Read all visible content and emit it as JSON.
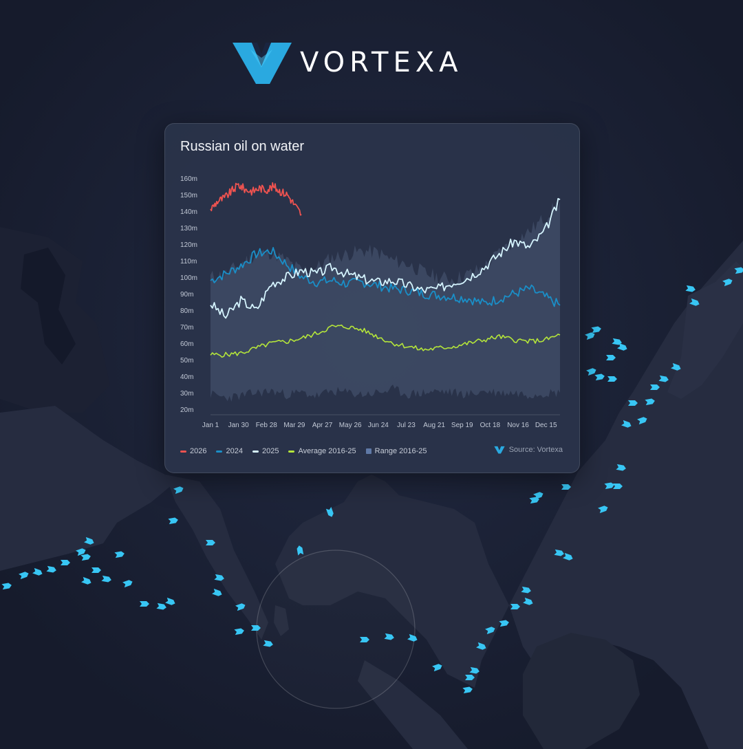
{
  "brand": {
    "name": "VORTEXA"
  },
  "source": {
    "label": "Source: Vortexa"
  },
  "colors": {
    "background": "#1a1f33",
    "land": "#262c40",
    "vessel": "#38c6f4",
    "card": "#2a344a",
    "accent": "#38c6f4"
  },
  "chart_data": {
    "type": "line",
    "title": "Russian oil on water",
    "xlabel": "",
    "ylabel": "",
    "ylim": [
      20,
      160
    ],
    "yticks": [
      "20m",
      "30m",
      "40m",
      "50m",
      "60m",
      "70m",
      "80m",
      "90m",
      "100m",
      "110m",
      "120m",
      "130m",
      "140m",
      "150m",
      "160m"
    ],
    "xticks": [
      "Jan 1",
      "Jan 30",
      "Feb 28",
      "Mar 29",
      "Apr 27",
      "May 26",
      "Jun 24",
      "Jul 23",
      "Aug 21",
      "Sep 19",
      "Oct 18",
      "Nov 16",
      "Dec 15"
    ],
    "x_week_index": [
      0,
      4,
      8,
      12,
      16,
      20,
      24,
      28,
      32,
      36,
      40,
      44,
      48,
      50
    ],
    "grid": false,
    "legend_position": "bottom-left",
    "series": [
      {
        "name": "2026",
        "color": "#ef5350",
        "x_week_index": [
          0,
          1,
          2,
          3,
          4,
          5,
          6,
          7,
          8,
          9,
          10,
          11,
          12,
          13
        ],
        "values": [
          141,
          146,
          148,
          152,
          156,
          153,
          152,
          154,
          153,
          155,
          152,
          150,
          144,
          138
        ]
      },
      {
        "name": "2024",
        "color": "#1a8fc8",
        "values": [
          98,
          102,
          107,
          114,
          116,
          108,
          100,
          97,
          98,
          96,
          97,
          95,
          93,
          92,
          90,
          89,
          88,
          87,
          84,
          87,
          90,
          93,
          88,
          83
        ]
      },
      {
        "name": "2025",
        "color": "#d6f5ff",
        "values": [
          84,
          76,
          86,
          80,
          96,
          100,
          104,
          102,
          106,
          102,
          99,
          97,
          98,
          95,
          92,
          93,
          97,
          100,
          106,
          114,
          122,
          118,
          128,
          147
        ]
      },
      {
        "name": "Average 2016-25",
        "color": "#b5e63a",
        "values": [
          53,
          53,
          54,
          57,
          60,
          61,
          63,
          66,
          70,
          70,
          68,
          64,
          60,
          58,
          56,
          57,
          58,
          60,
          62,
          64,
          62,
          61,
          62,
          65
        ]
      },
      {
        "name": "Range 2016-25",
        "color": "#4b5a74",
        "upper": [
          100,
          102,
          108,
          114,
          115,
          110,
          104,
          106,
          112,
          114,
          116,
          115,
          110,
          108,
          103,
          100,
          99,
          102,
          106,
          115,
          122,
          128,
          136,
          146
        ],
        "lower": [
          29,
          27,
          28,
          30,
          31,
          29,
          30,
          28,
          31,
          30,
          29,
          30,
          32,
          29,
          30,
          31,
          30,
          29,
          31,
          30,
          30,
          29,
          30,
          30
        ]
      }
    ]
  },
  "map": {
    "vessels": [
      [
        260,
        712,
        0
      ],
      [
        252,
        757,
        0
      ],
      [
        306,
        789,
        0
      ],
      [
        319,
        840,
        0
      ],
      [
        316,
        862,
        0
      ],
      [
        350,
        882,
        0
      ],
      [
        348,
        918,
        0
      ],
      [
        372,
        913,
        0
      ],
      [
        390,
        936,
        0
      ],
      [
        130,
        787,
        0
      ],
      [
        118,
        802,
        0
      ],
      [
        125,
        810,
        0
      ],
      [
        95,
        818,
        0
      ],
      [
        75,
        828,
        0
      ],
      [
        55,
        832,
        0
      ],
      [
        35,
        836,
        0
      ],
      [
        10,
        852,
        0
      ],
      [
        140,
        829,
        0
      ],
      [
        155,
        842,
        0
      ],
      [
        126,
        845,
        0
      ],
      [
        186,
        848,
        0
      ],
      [
        174,
        806,
        0
      ],
      [
        210,
        878,
        0
      ],
      [
        235,
        882,
        0
      ],
      [
        248,
        875,
        0
      ],
      [
        480,
        745,
        90
      ],
      [
        436,
        800,
        -90
      ],
      [
        530,
        930,
        0
      ],
      [
        566,
        926,
        0
      ],
      [
        600,
        928,
        0
      ],
      [
        636,
        970,
        0
      ],
      [
        680,
        1003,
        0
      ],
      [
        683,
        985,
        0
      ],
      [
        690,
        975,
        0
      ],
      [
        700,
        940,
        0
      ],
      [
        713,
        916,
        0
      ],
      [
        733,
        906,
        0
      ],
      [
        749,
        882,
        0
      ],
      [
        765,
        858,
        0
      ],
      [
        768,
        875,
        0
      ],
      [
        783,
        720,
        0
      ],
      [
        777,
        727,
        0
      ],
      [
        823,
        708,
        0
      ],
      [
        813,
        804,
        0
      ],
      [
        826,
        810,
        0
      ],
      [
        877,
        740,
        0
      ],
      [
        886,
        706,
        0
      ],
      [
        898,
        707,
        0
      ],
      [
        903,
        680,
        0
      ],
      [
        911,
        617,
        0
      ],
      [
        934,
        611,
        0
      ],
      [
        945,
        584,
        0
      ],
      [
        952,
        563,
        0
      ],
      [
        965,
        551,
        0
      ],
      [
        983,
        534,
        0
      ],
      [
        858,
        488,
        0
      ],
      [
        867,
        479,
        0
      ],
      [
        888,
        520,
        0
      ],
      [
        897,
        497,
        0
      ],
      [
        905,
        505,
        0
      ],
      [
        860,
        540,
        0
      ],
      [
        872,
        548,
        0
      ],
      [
        890,
        551,
        0
      ],
      [
        1004,
        420,
        0
      ],
      [
        1010,
        440,
        0
      ],
      [
        1058,
        410,
        0
      ],
      [
        1075,
        393,
        0
      ],
      [
        920,
        586,
        0
      ]
    ]
  }
}
